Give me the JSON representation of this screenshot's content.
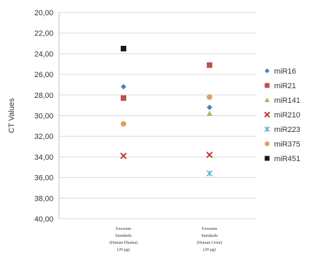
{
  "chart_data": {
    "type": "scatter",
    "ylabel": "CT Values",
    "xlabel": "",
    "title": "",
    "ylim": [
      20,
      40
    ],
    "y_inverted": true,
    "y_ticks": [
      "20,00",
      "22,00",
      "24,00",
      "26,00",
      "28,00",
      "30,00",
      "32,00",
      "34,00",
      "36,00",
      "38,00",
      "40,00"
    ],
    "grid": true,
    "legend_position": "right",
    "categories": [
      [
        "Exosome",
        "Standards",
        "(Human Plasma)",
        "(20 µg)"
      ],
      [
        "Exosome",
        "Standards",
        "(Human Urine)",
        "(20 µg)"
      ]
    ],
    "series": [
      {
        "name": "miR16",
        "marker": "diamond",
        "color": "#4f81bd",
        "values": [
          27.2,
          29.2
        ]
      },
      {
        "name": "miR21",
        "marker": "square",
        "color": "#c0504d",
        "values": [
          28.3,
          25.1
        ]
      },
      {
        "name": "miR141",
        "marker": "triangle",
        "color": "#9bbb59",
        "values": [
          null,
          29.8
        ]
      },
      {
        "name": "miR210",
        "marker": "x",
        "color": "#c0392b",
        "values": [
          33.9,
          33.8
        ]
      },
      {
        "name": "miR223",
        "marker": "star",
        "color": "#4bacc6",
        "values": [
          null,
          35.6
        ]
      },
      {
        "name": "miR375",
        "marker": "circle",
        "color": "#e0a060",
        "values": [
          30.8,
          28.2
        ]
      },
      {
        "name": "miR451",
        "marker": "square",
        "color": "#1a1a1a",
        "values": [
          23.5,
          null
        ]
      }
    ]
  }
}
